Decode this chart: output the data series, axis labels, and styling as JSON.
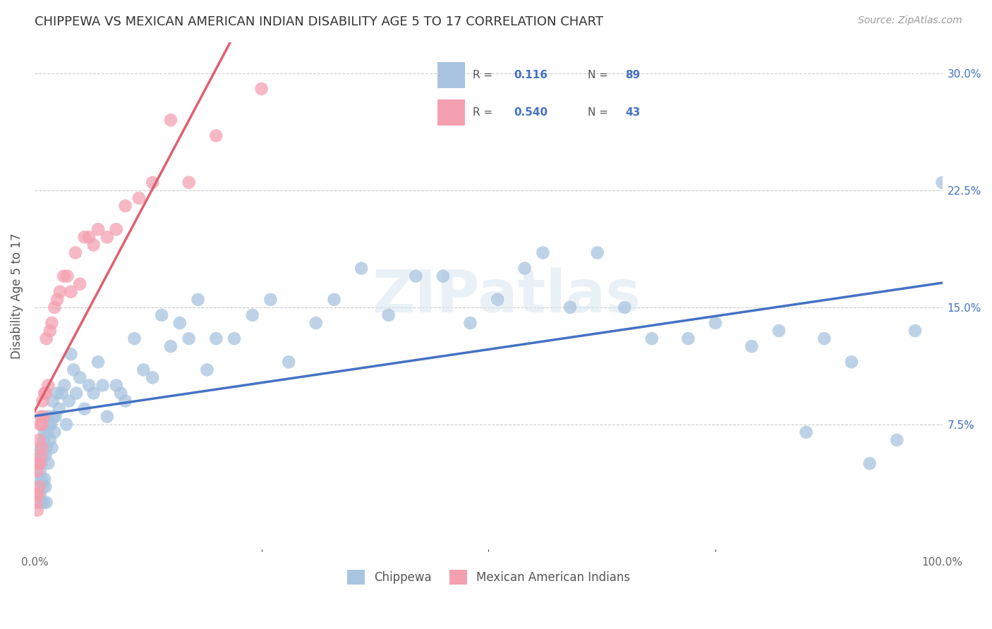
{
  "title": "CHIPPEWA VS MEXICAN AMERICAN INDIAN DISABILITY AGE 5 TO 17 CORRELATION CHART",
  "source": "Source: ZipAtlas.com",
  "ylabel": "Disability Age 5 to 17",
  "xlim": [
    0.0,
    1.0
  ],
  "ylim": [
    -0.005,
    0.32
  ],
  "chippewa_R": 0.116,
  "chippewa_N": 89,
  "mexican_R": 0.54,
  "mexican_N": 43,
  "chippewa_color": "#a8c4e0",
  "mexican_color": "#f4a0b0",
  "chippewa_line_color": "#4472C4",
  "mexican_line_color": "#E06070",
  "trendline_dash_color": "#d0a0a8",
  "watermark": "ZIPatlas",
  "ytick_vals": [
    0.075,
    0.15,
    0.225,
    0.3
  ],
  "ytick_labels": [
    "7.5%",
    "15.0%",
    "22.5%",
    "30.0%"
  ],
  "chippewa_x": [
    0.002,
    0.003,
    0.004,
    0.005,
    0.006,
    0.006,
    0.007,
    0.007,
    0.008,
    0.008,
    0.009,
    0.009,
    0.01,
    0.01,
    0.011,
    0.011,
    0.012,
    0.012,
    0.013,
    0.013,
    0.014,
    0.015,
    0.015,
    0.016,
    0.017,
    0.018,
    0.019,
    0.02,
    0.021,
    0.022,
    0.023,
    0.025,
    0.027,
    0.03,
    0.033,
    0.035,
    0.038,
    0.04,
    0.043,
    0.046,
    0.05,
    0.055,
    0.06,
    0.065,
    0.07,
    0.075,
    0.08,
    0.09,
    0.095,
    0.1,
    0.11,
    0.12,
    0.13,
    0.14,
    0.15,
    0.16,
    0.17,
    0.18,
    0.19,
    0.2,
    0.22,
    0.24,
    0.26,
    0.28,
    0.31,
    0.33,
    0.36,
    0.39,
    0.42,
    0.45,
    0.48,
    0.51,
    0.54,
    0.56,
    0.59,
    0.62,
    0.65,
    0.68,
    0.72,
    0.75,
    0.79,
    0.82,
    0.85,
    0.87,
    0.9,
    0.92,
    0.95,
    0.97,
    1.0
  ],
  "chippewa_y": [
    0.055,
    0.04,
    0.035,
    0.05,
    0.045,
    0.03,
    0.06,
    0.025,
    0.05,
    0.04,
    0.055,
    0.035,
    0.065,
    0.025,
    0.07,
    0.04,
    0.055,
    0.035,
    0.06,
    0.025,
    0.07,
    0.08,
    0.05,
    0.075,
    0.065,
    0.075,
    0.06,
    0.09,
    0.08,
    0.07,
    0.08,
    0.095,
    0.085,
    0.095,
    0.1,
    0.075,
    0.09,
    0.12,
    0.11,
    0.095,
    0.105,
    0.085,
    0.1,
    0.095,
    0.115,
    0.1,
    0.08,
    0.1,
    0.095,
    0.09,
    0.13,
    0.11,
    0.105,
    0.145,
    0.125,
    0.14,
    0.13,
    0.155,
    0.11,
    0.13,
    0.13,
    0.145,
    0.155,
    0.115,
    0.14,
    0.155,
    0.175,
    0.145,
    0.17,
    0.17,
    0.14,
    0.155,
    0.175,
    0.185,
    0.15,
    0.185,
    0.15,
    0.13,
    0.13,
    0.14,
    0.125,
    0.135,
    0.07,
    0.13,
    0.115,
    0.05,
    0.065,
    0.135,
    0.23
  ],
  "mexican_x": [
    0.001,
    0.002,
    0.003,
    0.003,
    0.004,
    0.004,
    0.005,
    0.005,
    0.006,
    0.006,
    0.007,
    0.007,
    0.008,
    0.008,
    0.009,
    0.01,
    0.011,
    0.012,
    0.013,
    0.015,
    0.017,
    0.019,
    0.022,
    0.025,
    0.028,
    0.032,
    0.036,
    0.04,
    0.045,
    0.05,
    0.055,
    0.06,
    0.065,
    0.07,
    0.08,
    0.09,
    0.1,
    0.115,
    0.13,
    0.15,
    0.17,
    0.2,
    0.25
  ],
  "mexican_y": [
    0.03,
    0.025,
    0.045,
    0.02,
    0.05,
    0.03,
    0.065,
    0.035,
    0.075,
    0.05,
    0.08,
    0.055,
    0.075,
    0.06,
    0.09,
    0.08,
    0.095,
    0.095,
    0.13,
    0.1,
    0.135,
    0.14,
    0.15,
    0.155,
    0.16,
    0.17,
    0.17,
    0.16,
    0.185,
    0.165,
    0.195,
    0.195,
    0.19,
    0.2,
    0.195,
    0.2,
    0.215,
    0.22,
    0.23,
    0.27,
    0.23,
    0.26,
    0.29
  ]
}
